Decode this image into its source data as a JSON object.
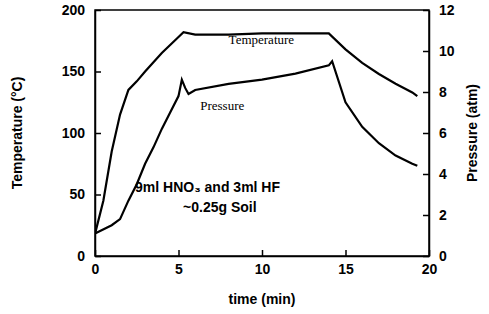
{
  "chart_data": {
    "type": "line",
    "x_label": "time (min)",
    "y_label": "Temperature (°C)",
    "y2_label": "Pressure (atm)",
    "xlim": [
      0,
      20
    ],
    "xticks": [
      0,
      5,
      10,
      15,
      20
    ],
    "ylim": [
      0,
      200
    ],
    "yticks": [
      0,
      50,
      100,
      150,
      200
    ],
    "y2lim": [
      0,
      12
    ],
    "y2ticks": [
      0,
      2,
      4,
      6,
      8,
      10,
      12
    ],
    "grid": false,
    "annotations": [
      "9ml HNO₃ and 3ml HF",
      "~0.25g Soil"
    ],
    "series": [
      {
        "name": "Temperature",
        "color": "#000000",
        "axis": "y",
        "x": [
          0,
          0.5,
          1,
          1.5,
          2,
          2.5,
          3,
          4,
          5,
          5.3,
          6,
          8,
          10,
          12,
          14,
          15,
          16,
          17,
          18,
          19,
          19.3
        ],
        "values": [
          18,
          45,
          85,
          115,
          135,
          142,
          150,
          165,
          178,
          182,
          180,
          180,
          181,
          181,
          181,
          168,
          157,
          148,
          140,
          133,
          130
        ]
      },
      {
        "name": "Pressure",
        "color": "#000000",
        "axis": "y2",
        "x": [
          0,
          1,
          1.5,
          2,
          2.5,
          3,
          3.5,
          4,
          4.5,
          5,
          5.2,
          5.4,
          5.6,
          6,
          8,
          10,
          12,
          14,
          14.2,
          15,
          16,
          17,
          18,
          19,
          19.3
        ],
        "values": [
          1.1,
          1.5,
          1.8,
          2.7,
          3.5,
          4.5,
          5.3,
          6.2,
          7.0,
          7.8,
          8.6,
          8.2,
          7.9,
          8.1,
          8.4,
          8.6,
          8.9,
          9.3,
          9.5,
          7.5,
          6.3,
          5.5,
          4.9,
          4.5,
          4.4
        ]
      }
    ]
  }
}
